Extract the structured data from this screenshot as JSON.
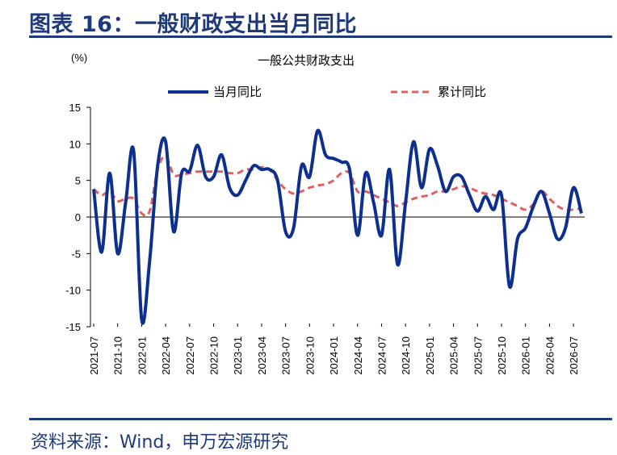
{
  "header": {
    "title": "图表 16：一般财政支出当月同比"
  },
  "footer": {
    "source": "资料来源：Wind，申万宏源研究"
  },
  "colors": {
    "title": "#1f3a7a",
    "monthly": "#0d2f8e",
    "cumulative": "#e06060"
  },
  "chart_data": {
    "type": "line",
    "title": "一般公共财政支出",
    "ylabel": "(%)",
    "ylim": [
      -15,
      15
    ],
    "yticks": [
      15,
      10,
      5,
      0,
      -5,
      -10,
      -15
    ],
    "x_tick_labels": [
      "2021-07",
      "2021-10",
      "2022-01",
      "2022-04",
      "2022-07",
      "2022-10",
      "2023-01",
      "2023-04",
      "2023-07",
      "2023-10",
      "2024-01",
      "2024-04",
      "2024-07",
      "2024-10",
      "2025-01",
      "2025-04",
      "2025-07",
      "2025-10",
      "2026-01",
      "2026-04",
      "2026-07"
    ],
    "legend": {
      "position": "top"
    },
    "series": [
      {
        "name": "当月同比",
        "style": "solid",
        "values": [
          3.8,
          -4.8,
          6.0,
          -5.0,
          2.0,
          9.0,
          -14.0,
          -6.0,
          7.0,
          10.3,
          -2.0,
          6.0,
          6.3,
          9.8,
          5.5,
          5.5,
          8.5,
          4.0,
          3.0,
          5.0,
          7.0,
          6.5,
          6.5,
          5.0,
          -2.0,
          -1.5,
          7.0,
          5.5,
          11.8,
          8.5,
          8.0,
          7.5,
          6.5,
          -2.5,
          6.0,
          2.0,
          -2.5,
          6.5,
          -6.5,
          2.0,
          10.3,
          4.0,
          9.3,
          7.0,
          3.5,
          5.5,
          5.5,
          3.0,
          0.8,
          2.8,
          1.0,
          3.0,
          -9.5,
          -3.0,
          -1.5,
          1.5,
          3.5,
          0.5,
          -3.0,
          -1.5,
          4.0,
          0.5
        ]
      },
      {
        "name": "累计同比",
        "style": "dashed",
        "values": [
          3.8,
          3.0,
          3.5,
          2.2,
          2.5,
          2.5,
          0.5,
          0.8,
          6.5,
          8.3,
          5.8,
          5.8,
          6.0,
          6.2,
          6.2,
          6.2,
          6.2,
          6.0,
          6.0,
          6.5,
          6.5,
          6.8,
          6.5,
          5.0,
          3.8,
          3.2,
          3.5,
          4.0,
          4.3,
          4.5,
          5.0,
          6.0,
          6.0,
          3.5,
          3.5,
          3.0,
          2.5,
          2.0,
          1.5,
          2.0,
          2.5,
          2.8,
          3.0,
          3.5,
          3.5,
          3.8,
          4.2,
          4.0,
          3.5,
          3.2,
          3.0,
          2.5,
          2.0,
          1.5,
          1.0,
          1.8,
          3.5,
          2.5,
          1.5,
          1.0,
          1.0,
          1.2
        ]
      }
    ]
  }
}
